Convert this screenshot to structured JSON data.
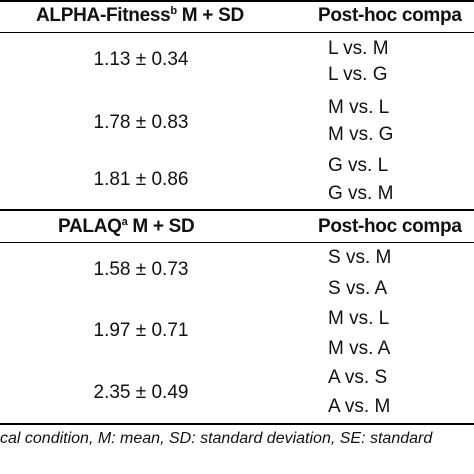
{
  "table1": {
    "header_left_main": "ALPHA-Fitness",
    "header_left_sup": "b",
    "header_left_rest": " M + SD",
    "header_right": "Post-hoc compa",
    "groups": [
      {
        "mean_sd": "1.13 ± 0.34",
        "comparisons": [
          "L vs. M",
          "L vs. G"
        ]
      },
      {
        "mean_sd": "1.78 ± 0.83",
        "comparisons": [
          "M vs. L",
          "M vs. G"
        ]
      },
      {
        "mean_sd": "1.81 ± 0.86",
        "comparisons": [
          "G vs. L",
          "G vs. M"
        ]
      }
    ]
  },
  "table2": {
    "header_left_main": "PALAQ",
    "header_left_sup": "a",
    "header_left_rest": " M + SD",
    "header_right": "Post-hoc compa",
    "groups": [
      {
        "mean_sd": "1.58 ± 0.73",
        "comparisons": [
          "S vs. M",
          "S vs. A"
        ]
      },
      {
        "mean_sd": "1.97 ± 0.71",
        "comparisons": [
          "M vs. L",
          "M vs. A"
        ]
      },
      {
        "mean_sd": "2.35 ± 0.49",
        "comparisons": [
          "A vs. S",
          "A vs. M"
        ]
      }
    ]
  },
  "footnote": "cal condition, M: mean, SD: standard deviation, SE: standard"
}
